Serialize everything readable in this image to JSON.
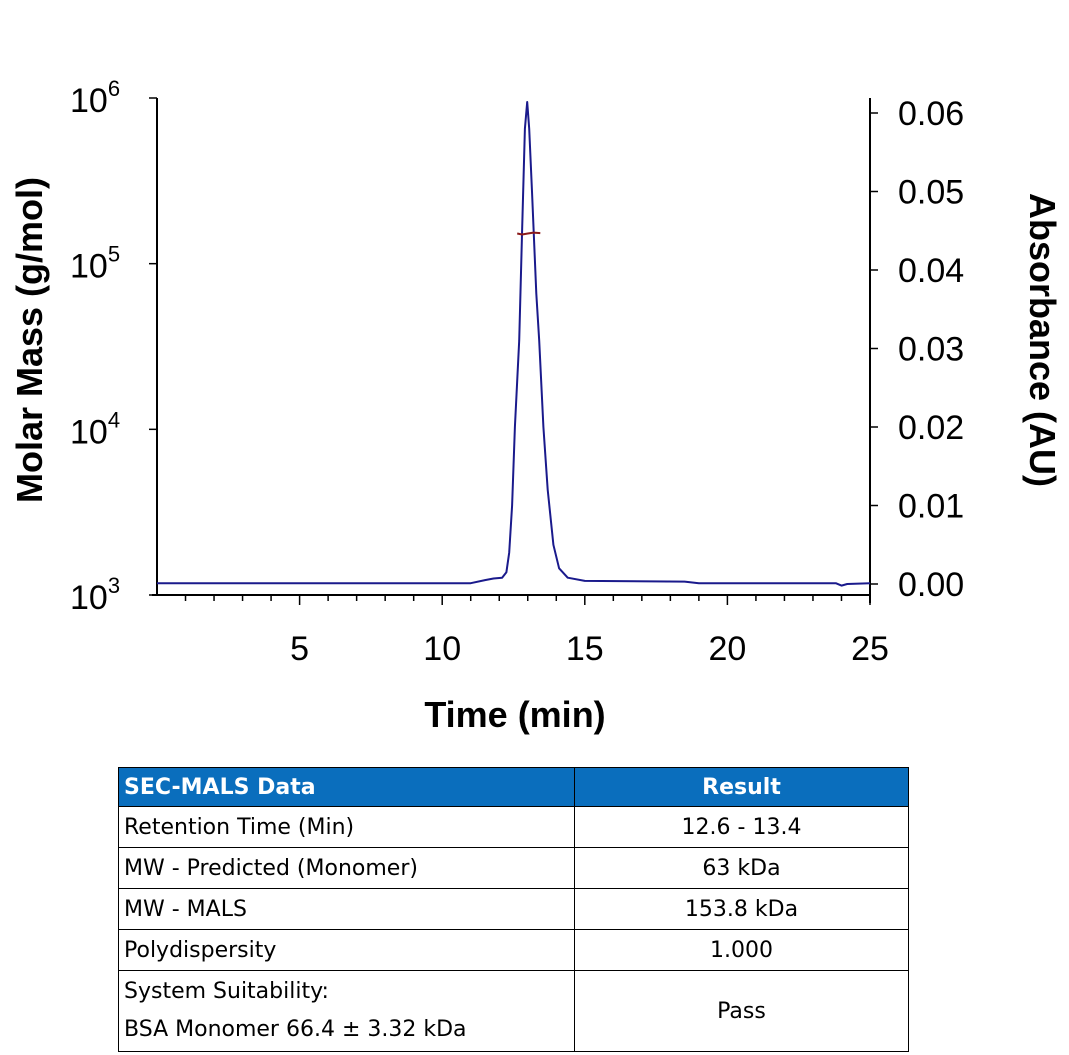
{
  "chart_data": {
    "type": "line",
    "xlabel": "Time (min)",
    "ylabel_left": "Molar Mass (g/mol)",
    "ylabel_right": "Absorbance (AU)",
    "xlim": [
      0,
      25
    ],
    "x_ticks": [
      "5",
      "10",
      "15",
      "20",
      "25"
    ],
    "y_left_scale": "log",
    "y_left_lim": [
      1000,
      1000000
    ],
    "y_left_ticks": [
      {
        "base": "10",
        "exp": "3"
      },
      {
        "base": "10",
        "exp": "4"
      },
      {
        "base": "10",
        "exp": "5"
      },
      {
        "base": "10",
        "exp": "6"
      }
    ],
    "y_right_lim": [
      0,
      0.06
    ],
    "y_right_ticks": [
      "0.00",
      "0.01",
      "0.02",
      "0.03",
      "0.04",
      "0.05",
      "0.06"
    ],
    "grid": false,
    "series": [
      {
        "axis": "right",
        "color": "#1a1a8c",
        "points": [
          [
            0,
            0.0001
          ],
          [
            11,
            0.0001
          ],
          [
            11.5,
            0.0005
          ],
          [
            11.8,
            0.0007
          ],
          [
            12.1,
            0.0008
          ],
          [
            12.25,
            0.0015
          ],
          [
            12.35,
            0.004
          ],
          [
            12.45,
            0.01
          ],
          [
            12.55,
            0.02
          ],
          [
            12.7,
            0.031
          ],
          [
            12.8,
            0.045
          ],
          [
            12.9,
            0.058
          ],
          [
            12.98,
            0.0614
          ],
          [
            13.05,
            0.058
          ],
          [
            13.15,
            0.05
          ],
          [
            13.3,
            0.037
          ],
          [
            13.4,
            0.031
          ],
          [
            13.55,
            0.02
          ],
          [
            13.7,
            0.012
          ],
          [
            13.9,
            0.005
          ],
          [
            14.1,
            0.002
          ],
          [
            14.4,
            0.0008
          ],
          [
            15,
            0.0004
          ],
          [
            18.5,
            0.0003
          ],
          [
            19,
            0.0001
          ],
          [
            23.8,
            0.0001
          ],
          [
            24,
            -0.0002
          ],
          [
            24.2,
            0.0
          ],
          [
            25,
            0.0001
          ]
        ]
      },
      {
        "axis": "left",
        "color": "#8b1a1a",
        "points": [
          [
            12.63,
            152000
          ],
          [
            12.8,
            150000
          ],
          [
            13.0,
            152000
          ],
          [
            13.2,
            154000
          ],
          [
            13.44,
            153000
          ]
        ]
      }
    ]
  },
  "table": {
    "headers": [
      "SEC-MALS Data",
      "Result"
    ],
    "rows": [
      {
        "label": "Retention Time (Min)",
        "value": "12.6 - 13.4"
      },
      {
        "label": "MW - Predicted (Monomer)",
        "value": "63 kDa"
      },
      {
        "label": "MW - MALS",
        "value": "153.8 kDa"
      },
      {
        "label": "Polydispersity",
        "value": "1.000"
      },
      {
        "label": "System Suitability:",
        "label2": "BSA Monomer 66.4 ± 3.32 kDa",
        "value": "Pass"
      }
    ]
  }
}
